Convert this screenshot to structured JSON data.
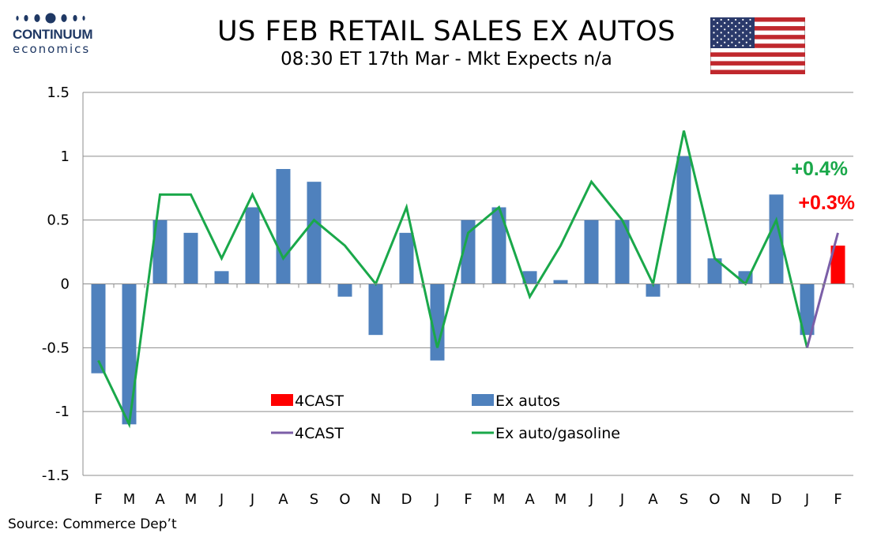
{
  "logo": {
    "name": "CONTINUUM",
    "sub": "economics"
  },
  "title": "US FEB RETAIL SALES EX AUTOS",
  "subtitle": "08:30 ET 17th Mar - Mkt Expects n/a",
  "source": "Source: Commerce Dep’t",
  "colors": {
    "bar": "#4f81bd",
    "forecast_bar": "#ff0000",
    "line": "#1aa84a",
    "forecast_line": "#7b5ea7",
    "grid": "#8c8c8c",
    "logo": "#1f3864"
  },
  "chart_data": {
    "type": "bar",
    "categories": [
      "F",
      "M",
      "A",
      "M",
      "J",
      "J",
      "A",
      "S",
      "O",
      "N",
      "D",
      "J",
      "F",
      "M",
      "A",
      "M",
      "J",
      "J",
      "A",
      "S",
      "O",
      "N",
      "D",
      "J",
      "F"
    ],
    "ylim": [
      -1.5,
      1.5
    ],
    "yticks": [
      "-1.5",
      "-1",
      "-0.5",
      "0",
      "0.5",
      "1",
      "1.5"
    ],
    "ytick_values": [
      -1.5,
      -1,
      -0.5,
      0,
      0.5,
      1,
      1.5
    ],
    "grid": true,
    "series": [
      {
        "name": "Ex autos",
        "kind": "bar",
        "values": [
          -0.7,
          -1.1,
          0.5,
          0.4,
          0.1,
          0.6,
          0.9,
          0.8,
          -0.1,
          -0.4,
          0.4,
          -0.6,
          0.5,
          0.6,
          0.1,
          0.03,
          0.5,
          0.5,
          -0.1,
          1.0,
          0.2,
          0.1,
          0.7,
          -0.4,
          null
        ]
      },
      {
        "name": "4CAST",
        "kind": "bar",
        "values": [
          null,
          null,
          null,
          null,
          null,
          null,
          null,
          null,
          null,
          null,
          null,
          null,
          null,
          null,
          null,
          null,
          null,
          null,
          null,
          null,
          null,
          null,
          null,
          null,
          0.3
        ]
      },
      {
        "name": "Ex auto/gasoline",
        "kind": "line",
        "values": [
          -0.6,
          -1.1,
          0.7,
          0.7,
          0.2,
          0.7,
          0.2,
          0.5,
          0.3,
          0.0,
          0.6,
          -0.5,
          0.4,
          0.6,
          -0.1,
          0.3,
          0.8,
          0.5,
          0.0,
          1.2,
          0.2,
          0.0,
          0.5,
          -0.5,
          null
        ]
      },
      {
        "name": "4CAST",
        "kind": "line",
        "values": [
          null,
          null,
          null,
          null,
          null,
          null,
          null,
          null,
          null,
          null,
          null,
          null,
          null,
          null,
          null,
          null,
          null,
          null,
          null,
          null,
          null,
          null,
          null,
          -0.5,
          0.4
        ]
      }
    ],
    "annotations": [
      {
        "text": "+0.4%",
        "color": "#1aa84a"
      },
      {
        "text": "+0.3%",
        "color": "#ff0000"
      }
    ],
    "legend": [
      {
        "label": "4CAST",
        "kind": "bar",
        "color": "#ff0000"
      },
      {
        "label": "Ex autos",
        "kind": "bar",
        "color": "#4f81bd"
      },
      {
        "label": "4CAST",
        "kind": "line",
        "color": "#7b5ea7"
      },
      {
        "label": "Ex auto/gasoline",
        "kind": "line",
        "color": "#1aa84a"
      }
    ]
  }
}
